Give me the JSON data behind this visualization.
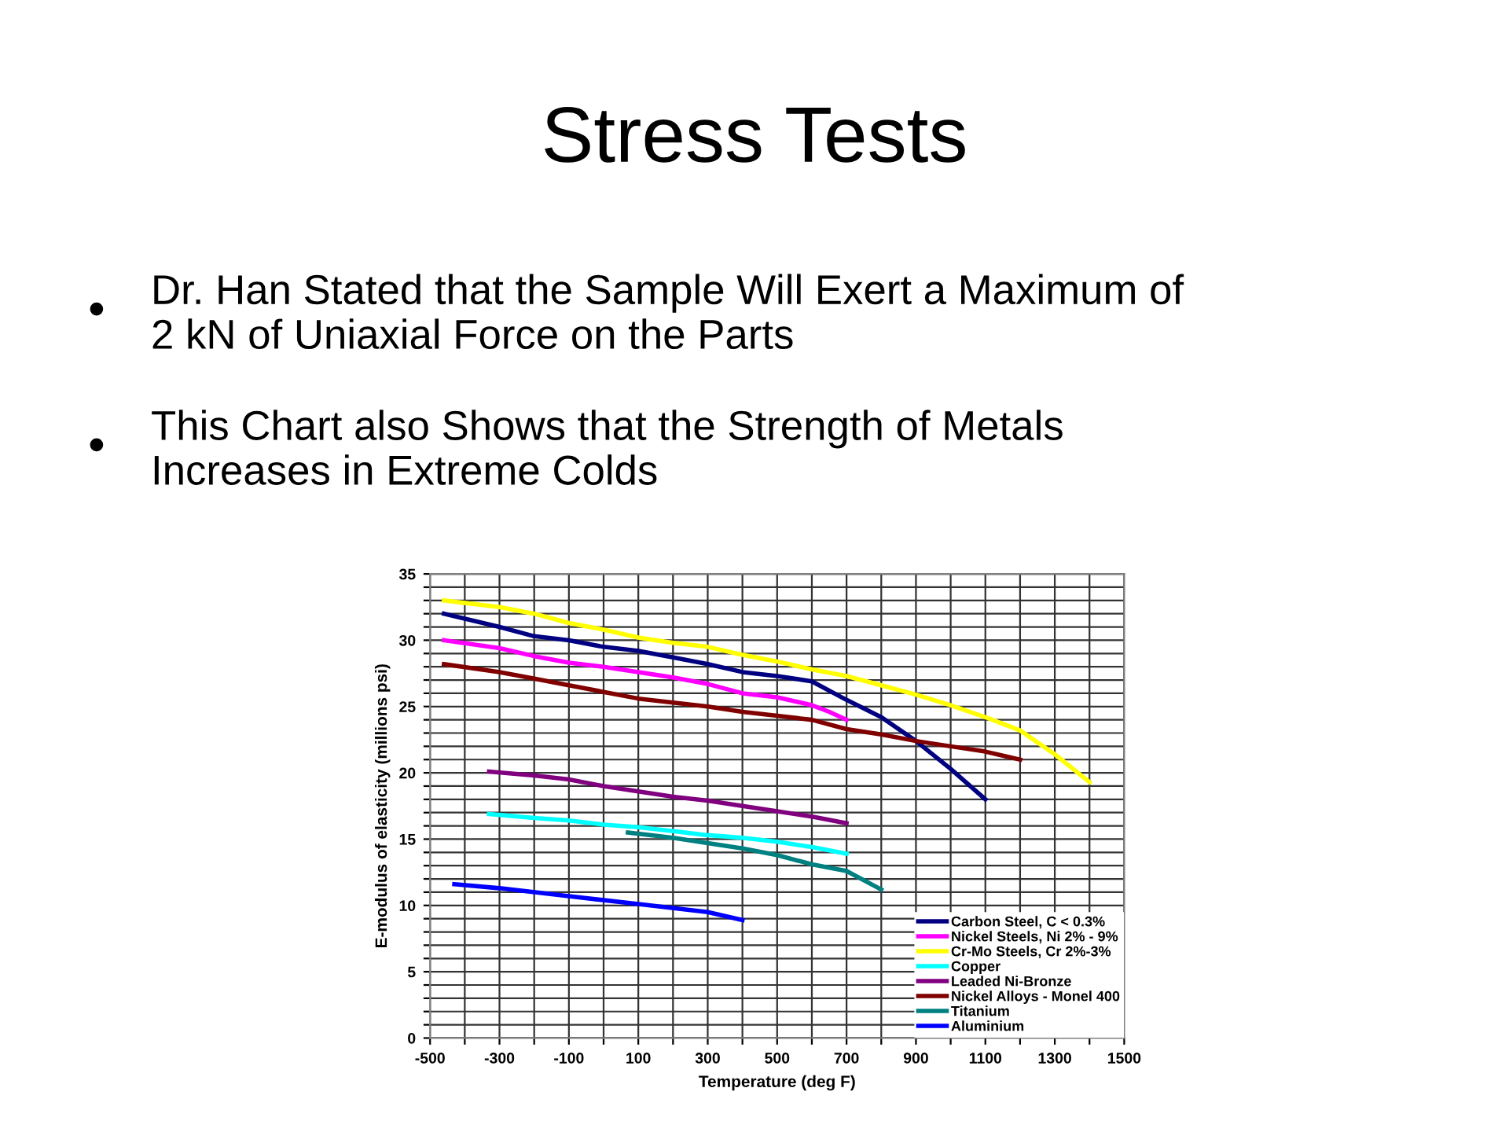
{
  "chart_data": {
    "type": "line",
    "title": "Stress Tests",
    "annotations": [
      "Dr. Han Stated that the Sample Will Exert a Maximum of\n2 kN of Uniaxial Force on the Parts",
      "This Chart also Shows that the Strength of Metals\nIncreases in Extreme Colds"
    ],
    "xlabel": "Temperature (deg F)",
    "ylabel": "E-modulus of elasticity (millions psi)",
    "xlim": [
      -500,
      1500
    ],
    "ylim": [
      0,
      35
    ],
    "xticks": [
      -500,
      {
        "value": -400,
        "label": null
      },
      -300,
      {
        "value": -200,
        "label": null
      },
      -100,
      {
        "value": 0,
        "label": null
      },
      100,
      {
        "value": 200,
        "label": null
      },
      300,
      {
        "value": 400,
        "label": null
      },
      500,
      {
        "value": 600,
        "label": null
      },
      700,
      {
        "value": 800,
        "label": null
      },
      900,
      {
        "value": 1000,
        "label": null
      },
      1100,
      {
        "value": 1200,
        "label": null
      },
      1300,
      {
        "value": 1400,
        "label": null
      },
      1500
    ],
    "yticks": [
      0,
      {
        "value": 1,
        "label": null
      },
      {
        "value": 2,
        "label": null
      },
      {
        "value": 3,
        "label": null
      },
      {
        "value": 4,
        "label": null
      },
      5,
      {
        "value": 6,
        "label": null
      },
      {
        "value": 7,
        "label": null
      },
      {
        "value": 8,
        "label": null
      },
      {
        "value": 9,
        "label": null
      },
      10,
      {
        "value": 11,
        "label": null
      },
      {
        "value": 12,
        "label": null
      },
      {
        "value": 13,
        "label": null
      },
      {
        "value": 14,
        "label": null
      },
      15,
      {
        "value": 16,
        "label": null
      },
      {
        "value": 17,
        "label": null
      },
      {
        "value": 18,
        "label": null
      },
      {
        "value": 19,
        "label": null
      },
      20,
      {
        "value": 21,
        "label": null
      },
      {
        "value": 22,
        "label": null
      },
      {
        "value": 23,
        "label": null
      },
      {
        "value": 24,
        "label": null
      },
      25,
      {
        "value": 26,
        "label": null
      },
      {
        "value": 27,
        "label": null
      },
      {
        "value": 28,
        "label": null
      },
      {
        "value": 29,
        "label": null
      },
      30,
      {
        "value": 31,
        "label": null
      },
      {
        "value": 32,
        "label": null
      },
      {
        "value": 33,
        "label": null
      },
      {
        "value": 34,
        "label": null
      },
      35
    ],
    "grid": true,
    "legend": "bottom right",
    "marker": "none",
    "line_style": "solid",
    "series": [
      {
        "name": "Carbon Steel, C < 0.3%",
        "color": "#000080",
        "x": [
          -460,
          -300,
          -200,
          -100,
          0,
          100,
          200,
          300,
          400,
          500,
          600,
          700,
          800,
          900,
          1000,
          1100
        ],
        "values": [
          32,
          31,
          30.3,
          30,
          29.5,
          29.2,
          28.7,
          28.2,
          27.6,
          27.3,
          26.9,
          25.5,
          24.2,
          22.4,
          20.3,
          18
        ]
      },
      {
        "name": "Nickel Steels, Ni 2% - 9%",
        "color": "#ff00ff",
        "x": [
          -460,
          -300,
          -200,
          -100,
          0,
          100,
          200,
          300,
          400,
          500,
          600,
          650,
          700
        ],
        "values": [
          30,
          29.4,
          28.8,
          28.3,
          28,
          27.6,
          27.2,
          26.7,
          26,
          25.7,
          25.1,
          24.6,
          24
        ]
      },
      {
        "name": "Cr-Mo Steels, Cr 2%-3%",
        "color": "#ffff00",
        "x": [
          -460,
          -300,
          -200,
          -100,
          0,
          100,
          200,
          300,
          400,
          500,
          600,
          700,
          800,
          900,
          1000,
          1100,
          1200,
          1300,
          1400
        ],
        "values": [
          33,
          32.5,
          32,
          31.3,
          30.8,
          30.2,
          29.8,
          29.5,
          28.9,
          28.4,
          27.8,
          27.3,
          26.6,
          25.9,
          25.1,
          24.2,
          23.2,
          21.4,
          19.3
        ]
      },
      {
        "name": "Copper",
        "color": "#00ffff",
        "x": [
          -330,
          -200,
          -100,
          0,
          100,
          200,
          300,
          400,
          500,
          600,
          700
        ],
        "values": [
          16.9,
          16.6,
          16.4,
          16.1,
          15.9,
          15.6,
          15.3,
          15.1,
          14.8,
          14.4,
          13.9
        ]
      },
      {
        "name": "Leaded Ni-Bronze",
        "color": "#800080",
        "x": [
          -330,
          -200,
          -100,
          0,
          100,
          200,
          300,
          400,
          500,
          600,
          700
        ],
        "values": [
          20.1,
          19.8,
          19.5,
          19,
          18.6,
          18.2,
          17.9,
          17.5,
          17.1,
          16.7,
          16.2
        ]
      },
      {
        "name": "Nickel Alloys - Monel 400",
        "color": "#800000",
        "x": [
          -460,
          -300,
          -200,
          -100,
          0,
          100,
          200,
          300,
          400,
          500,
          600,
          700,
          800,
          900,
          1000,
          1100,
          1200
        ],
        "values": [
          28.2,
          27.6,
          27.1,
          26.6,
          26.1,
          25.6,
          25.3,
          25,
          24.6,
          24.3,
          24,
          23.3,
          22.9,
          22.4,
          22,
          21.6,
          21
        ]
      },
      {
        "name": "Titanium",
        "color": "#008080",
        "x": [
          70,
          200,
          300,
          400,
          500,
          600,
          700,
          800
        ],
        "values": [
          15.5,
          15.1,
          14.7,
          14.3,
          13.8,
          13.1,
          12.6,
          11.2
        ]
      },
      {
        "name": "Aluminium",
        "color": "#0000ff",
        "x": [
          -430,
          -300,
          -100,
          100,
          300,
          400
        ],
        "values": [
          11.6,
          11.3,
          10.7,
          10.1,
          9.5,
          8.9
        ]
      }
    ]
  }
}
